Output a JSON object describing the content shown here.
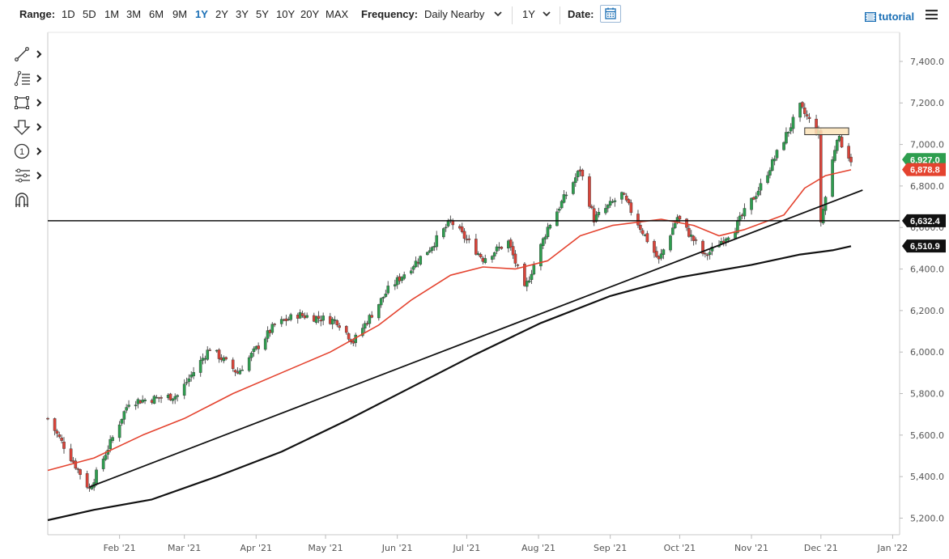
{
  "toolbar": {
    "range_label": "Range:",
    "ranges": [
      "1D",
      "5D",
      "1M",
      "3M",
      "6M",
      "9M",
      "1Y",
      "2Y",
      "3Y",
      "5Y",
      "10Y",
      "20Y",
      "MAX"
    ],
    "active_range": "1Y",
    "frequency_label": "Frequency:",
    "frequency_value": "Daily Nearby",
    "period_value": "1Y",
    "date_label": "Date:",
    "tutorial_label": "tutorial"
  },
  "tools": [
    "line-tool-icon",
    "fib-tool-icon",
    "rectangle-tool-icon",
    "arrow-tool-icon",
    "counter-tool-icon",
    "measure-tool-icon",
    "magnet-icon"
  ],
  "counter_glyph": "1",
  "chart_data": {
    "type": "candlestick",
    "x_ticks": [
      "Feb '21",
      "Mar '21",
      "Apr '21",
      "May '21",
      "Jun '21",
      "Jul '21",
      "Aug '21",
      "Sep '21",
      "Oct '21",
      "Nov '21",
      "Dec '21",
      "Jan '22"
    ],
    "y_ticks": [
      "7,400.0",
      "7,200.0",
      "7,000.0",
      "6,800.0",
      "6,600.0",
      "6,400.0",
      "6,200.0",
      "6,000.0",
      "5,800.0",
      "5,600.0",
      "5,400.0",
      "5,200.0"
    ],
    "ylim": [
      5120,
      7540
    ],
    "horizontal_line": 6632.4,
    "price_tags": [
      {
        "label": "6,927.0",
        "value": 6927,
        "color": "#2e9e4f"
      },
      {
        "label": "6,878.8",
        "value": 6878.8,
        "color": "#e4432f"
      },
      {
        "label": "6,632.4",
        "value": 6632.4,
        "color": "#111111"
      },
      {
        "label": "6,510.9",
        "value": 6510.9,
        "color": "#111111"
      }
    ],
    "ma_short": {
      "color": "#e4432f",
      "points": [
        [
          "2021-01-01",
          5430
        ],
        [
          "2021-01-21",
          5490
        ],
        [
          "2021-02-11",
          5600
        ],
        [
          "2021-03-01",
          5680
        ],
        [
          "2021-03-22",
          5800
        ],
        [
          "2021-04-12",
          5900
        ],
        [
          "2021-05-03",
          6000
        ],
        [
          "2021-05-24",
          6130
        ],
        [
          "2021-06-07",
          6250
        ],
        [
          "2021-06-24",
          6370
        ],
        [
          "2021-07-08",
          6410
        ],
        [
          "2021-07-22",
          6400
        ],
        [
          "2021-08-05",
          6440
        ],
        [
          "2021-08-19",
          6560
        ],
        [
          "2021-09-02",
          6610
        ],
        [
          "2021-09-23",
          6640
        ],
        [
          "2021-10-07",
          6610
        ],
        [
          "2021-10-18",
          6560
        ],
        [
          "2021-10-29",
          6590
        ],
        [
          "2021-11-15",
          6660
        ],
        [
          "2021-11-24",
          6790
        ],
        [
          "2021-12-03",
          6850
        ],
        [
          "2021-12-14",
          6878
        ]
      ]
    },
    "ma_long": {
      "color": "#111111",
      "points": [
        [
          "2021-01-01",
          5190
        ],
        [
          "2021-01-21",
          5240
        ],
        [
          "2021-02-15",
          5290
        ],
        [
          "2021-03-15",
          5400
        ],
        [
          "2021-04-12",
          5520
        ],
        [
          "2021-05-10",
          5670
        ],
        [
          "2021-06-07",
          5830
        ],
        [
          "2021-07-05",
          5990
        ],
        [
          "2021-08-02",
          6140
        ],
        [
          "2021-09-01",
          6270
        ],
        [
          "2021-10-01",
          6360
        ],
        [
          "2021-11-01",
          6420
        ],
        [
          "2021-11-22",
          6470
        ],
        [
          "2021-12-06",
          6490
        ],
        [
          "2021-12-14",
          6510
        ]
      ]
    },
    "trendline": {
      "color": "#111111",
      "points": [
        [
          "2021-01-19",
          5350
        ],
        [
          "2021-12-19",
          6780
        ]
      ]
    },
    "zone": {
      "from": "2021-11-24",
      "to": "2021-12-13",
      "low": 7047,
      "high": 7080
    },
    "candles_anchor": [
      [
        "2021-01-01",
        5680
      ],
      [
        "2021-01-19",
        5340
      ],
      [
        "2021-02-05",
        5760
      ],
      [
        "2021-02-26",
        5790
      ],
      [
        "2021-03-12",
        6020
      ],
      [
        "2021-03-24",
        5900
      ],
      [
        "2021-04-09",
        6130
      ],
      [
        "2021-04-19",
        6180
      ],
      [
        "2021-05-06",
        6150
      ],
      [
        "2021-05-13",
        6050
      ],
      [
        "2021-05-28",
        6300
      ],
      [
        "2021-06-15",
        6500
      ],
      [
        "2021-06-24",
        6630
      ],
      [
        "2021-07-08",
        6450
      ],
      [
        "2021-07-19",
        6530
      ],
      [
        "2021-07-26",
        6300
      ],
      [
        "2021-08-05",
        6600
      ],
      [
        "2021-08-19",
        6880
      ],
      [
        "2021-08-25",
        6640
      ],
      [
        "2021-09-06",
        6760
      ],
      [
        "2021-09-22",
        6440
      ],
      [
        "2021-09-30",
        6650
      ],
      [
        "2021-10-12",
        6460
      ],
      [
        "2021-10-25",
        6600
      ],
      [
        "2021-11-05",
        6800
      ],
      [
        "2021-11-22",
        7180
      ],
      [
        "2021-11-30",
        7050
      ],
      [
        "2021-12-01",
        6630
      ],
      [
        "2021-12-08",
        7040
      ],
      [
        "2021-12-14",
        6927
      ]
    ]
  }
}
